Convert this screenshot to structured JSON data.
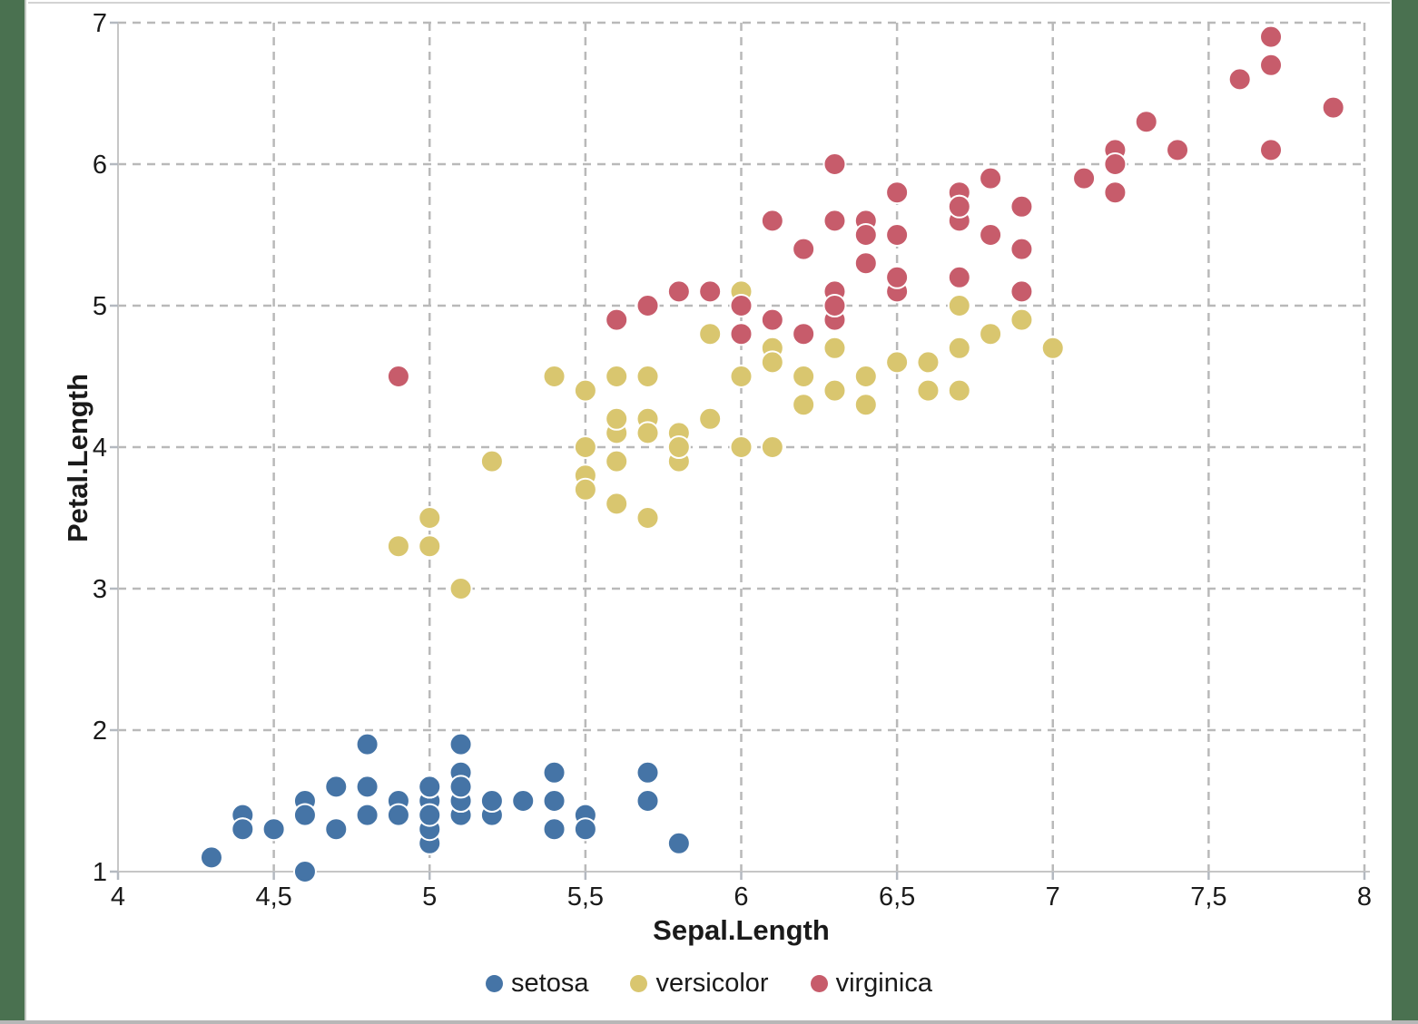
{
  "frame": {
    "left_edge_color": "#4A7150",
    "right_edge_color": "#4A7150",
    "top_line_color": "#d3d3d3",
    "bottom_line_color": "#b7b7b7"
  },
  "chart_data": {
    "type": "scatter",
    "xlabel": "Sepal.Length",
    "ylabel": "Petal.Length",
    "xlim": [
      4,
      8
    ],
    "ylim": [
      1,
      7
    ],
    "x_tick_values": [
      4,
      4.5,
      5,
      5.5,
      6,
      6.5,
      7,
      7.5,
      8
    ],
    "x_tick_labels": [
      "4",
      "4,5",
      "5",
      "5,5",
      "6",
      "6,5",
      "7",
      "7,5",
      "8"
    ],
    "y_tick_values": [
      1,
      2,
      3,
      4,
      5,
      6,
      7
    ],
    "y_tick_labels": [
      "1",
      "2",
      "3",
      "4",
      "5",
      "6",
      "7"
    ],
    "grid": "dashed-gray",
    "gridline_color": "#b9b9b9",
    "axis_line_color": "#c6c6c6",
    "tick_color": "#b4b9c0",
    "legend_position": "bottom-center",
    "marker": "circle",
    "marker_radius": 12,
    "series": [
      {
        "name": "setosa",
        "color": "#4574A6",
        "points": [
          [
            5.1,
            1.4
          ],
          [
            4.9,
            1.4
          ],
          [
            4.7,
            1.3
          ],
          [
            4.6,
            1.5
          ],
          [
            5.0,
            1.4
          ],
          [
            5.4,
            1.7
          ],
          [
            4.6,
            1.4
          ],
          [
            5.0,
            1.5
          ],
          [
            4.4,
            1.4
          ],
          [
            4.9,
            1.5
          ],
          [
            5.4,
            1.5
          ],
          [
            4.8,
            1.6
          ],
          [
            4.8,
            1.4
          ],
          [
            4.3,
            1.1
          ],
          [
            5.8,
            1.2
          ],
          [
            5.7,
            1.5
          ],
          [
            5.4,
            1.3
          ],
          [
            5.1,
            1.4
          ],
          [
            5.7,
            1.7
          ],
          [
            5.1,
            1.5
          ],
          [
            5.4,
            1.7
          ],
          [
            5.1,
            1.5
          ],
          [
            4.6,
            1.0
          ],
          [
            5.1,
            1.7
          ],
          [
            4.8,
            1.9
          ],
          [
            5.0,
            1.6
          ],
          [
            5.0,
            1.6
          ],
          [
            5.2,
            1.5
          ],
          [
            5.2,
            1.4
          ],
          [
            4.7,
            1.6
          ],
          [
            4.8,
            1.6
          ],
          [
            5.4,
            1.5
          ],
          [
            5.2,
            1.5
          ],
          [
            5.5,
            1.4
          ],
          [
            4.9,
            1.5
          ],
          [
            5.0,
            1.2
          ],
          [
            5.5,
            1.3
          ],
          [
            4.9,
            1.4
          ],
          [
            4.4,
            1.3
          ],
          [
            5.1,
            1.5
          ],
          [
            5.0,
            1.3
          ],
          [
            4.5,
            1.3
          ],
          [
            4.4,
            1.3
          ],
          [
            5.0,
            1.6
          ],
          [
            5.1,
            1.9
          ],
          [
            4.8,
            1.4
          ],
          [
            5.1,
            1.6
          ],
          [
            4.6,
            1.4
          ],
          [
            5.3,
            1.5
          ],
          [
            5.0,
            1.4
          ]
        ]
      },
      {
        "name": "versicolor",
        "color": "#D9C66F",
        "points": [
          [
            7.0,
            4.7
          ],
          [
            6.4,
            4.5
          ],
          [
            6.9,
            4.9
          ],
          [
            5.5,
            4.0
          ],
          [
            6.5,
            4.6
          ],
          [
            5.7,
            4.5
          ],
          [
            6.3,
            4.7
          ],
          [
            4.9,
            3.3
          ],
          [
            6.6,
            4.6
          ],
          [
            5.2,
            3.9
          ],
          [
            5.0,
            3.5
          ],
          [
            5.9,
            4.2
          ],
          [
            6.0,
            4.0
          ],
          [
            6.1,
            4.7
          ],
          [
            5.6,
            3.6
          ],
          [
            6.7,
            4.4
          ],
          [
            5.6,
            4.5
          ],
          [
            5.8,
            4.1
          ],
          [
            6.2,
            4.5
          ],
          [
            5.6,
            3.9
          ],
          [
            5.9,
            4.8
          ],
          [
            6.1,
            4.0
          ],
          [
            6.3,
            4.9
          ],
          [
            6.1,
            4.7
          ],
          [
            6.4,
            4.3
          ],
          [
            6.6,
            4.4
          ],
          [
            6.8,
            4.8
          ],
          [
            6.7,
            5.0
          ],
          [
            6.0,
            4.5
          ],
          [
            5.7,
            3.5
          ],
          [
            5.5,
            3.8
          ],
          [
            5.5,
            3.7
          ],
          [
            5.8,
            3.9
          ],
          [
            6.0,
            5.1
          ],
          [
            5.4,
            4.5
          ],
          [
            6.0,
            4.5
          ],
          [
            6.7,
            4.7
          ],
          [
            6.3,
            4.4
          ],
          [
            5.6,
            4.1
          ],
          [
            5.5,
            4.0
          ],
          [
            5.5,
            4.4
          ],
          [
            6.1,
            4.6
          ],
          [
            5.8,
            4.0
          ],
          [
            5.0,
            3.3
          ],
          [
            5.6,
            4.2
          ],
          [
            5.7,
            4.2
          ],
          [
            5.7,
            4.2
          ],
          [
            6.2,
            4.3
          ],
          [
            5.1,
            3.0
          ],
          [
            5.7,
            4.1
          ]
        ]
      },
      {
        "name": "virginica",
        "color": "#C75C6B",
        "points": [
          [
            6.3,
            6.0
          ],
          [
            5.8,
            5.1
          ],
          [
            7.1,
            5.9
          ],
          [
            6.3,
            5.6
          ],
          [
            6.5,
            5.8
          ],
          [
            7.6,
            6.6
          ],
          [
            4.9,
            4.5
          ],
          [
            7.3,
            6.3
          ],
          [
            6.7,
            5.8
          ],
          [
            7.2,
            6.1
          ],
          [
            6.5,
            5.1
          ],
          [
            6.4,
            5.3
          ],
          [
            6.8,
            5.5
          ],
          [
            5.7,
            5.0
          ],
          [
            5.8,
            5.1
          ],
          [
            6.4,
            5.3
          ],
          [
            6.5,
            5.5
          ],
          [
            7.7,
            6.7
          ],
          [
            7.7,
            6.9
          ],
          [
            6.0,
            5.0
          ],
          [
            6.9,
            5.7
          ],
          [
            5.6,
            4.9
          ],
          [
            7.7,
            6.7
          ],
          [
            6.3,
            4.9
          ],
          [
            6.7,
            5.7
          ],
          [
            7.2,
            6.0
          ],
          [
            6.2,
            4.8
          ],
          [
            6.1,
            4.9
          ],
          [
            6.4,
            5.6
          ],
          [
            7.2,
            5.8
          ],
          [
            7.4,
            6.1
          ],
          [
            7.9,
            6.4
          ],
          [
            6.4,
            5.6
          ],
          [
            6.3,
            5.1
          ],
          [
            6.1,
            5.6
          ],
          [
            7.7,
            6.1
          ],
          [
            6.3,
            5.6
          ],
          [
            6.4,
            5.5
          ],
          [
            6.0,
            4.8
          ],
          [
            6.9,
            5.4
          ],
          [
            6.7,
            5.6
          ],
          [
            6.9,
            5.1
          ],
          [
            5.8,
            5.1
          ],
          [
            6.8,
            5.9
          ],
          [
            6.7,
            5.7
          ],
          [
            6.7,
            5.2
          ],
          [
            6.3,
            5.0
          ],
          [
            6.5,
            5.2
          ],
          [
            6.2,
            5.4
          ],
          [
            5.9,
            5.1
          ]
        ]
      }
    ]
  }
}
